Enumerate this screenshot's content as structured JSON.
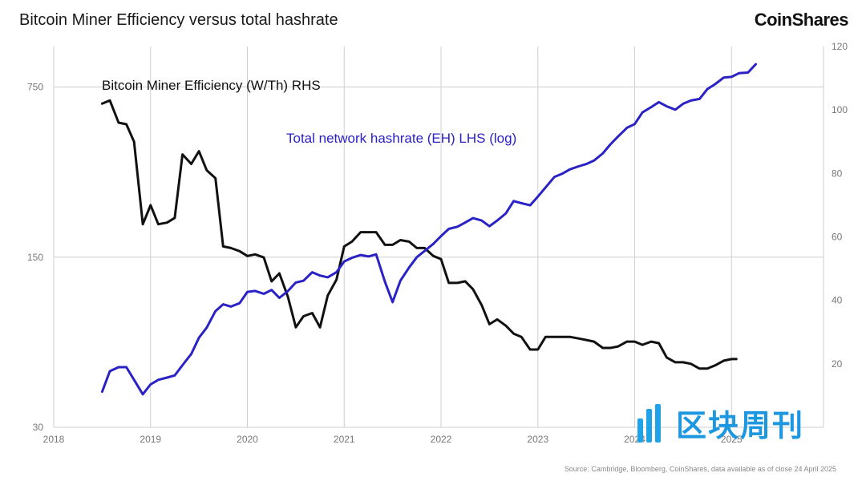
{
  "title": "Bitcoin Miner Efficiency versus total hashrate",
  "brand": "CoinShares",
  "source": "Source: Cambridge, Bloomberg, CoinShares, data available as of close 24 April 2025",
  "watermark": "区块周刊",
  "colors": {
    "efficiency": "#111111",
    "hashrate": "#2a22c4",
    "grid": "#cfcfcf",
    "watermark": "#1d97e0"
  },
  "chart_data": {
    "type": "line",
    "x_ticks": [
      "2018",
      "2019",
      "2020",
      "2021",
      "2022",
      "2023",
      "2024",
      "2025"
    ],
    "xlim": [
      2018.0,
      2025.95
    ],
    "left_axis": {
      "scale": "log",
      "ticks": [
        "30",
        "150",
        "750"
      ],
      "ylim": [
        30,
        1100
      ]
    },
    "right_axis": {
      "scale": "linear",
      "ticks": [
        "20",
        "40",
        "60",
        "80",
        "100",
        "120"
      ],
      "ylim": [
        0,
        120
      ]
    },
    "grid": {
      "vertical": true,
      "horizontal_at_left_ticks": true
    },
    "series": [
      {
        "name": "Bitcoin Miner Efficiency (W/Th) RHS",
        "axis": "right",
        "color": "#111111",
        "x": [
          2018.5,
          2018.58,
          2018.67,
          2018.75,
          2018.83,
          2018.92,
          2019.0,
          2019.08,
          2019.17,
          2019.25,
          2019.33,
          2019.42,
          2019.5,
          2019.58,
          2019.67,
          2019.75,
          2019.83,
          2019.92,
          2020.0,
          2020.08,
          2020.17,
          2020.25,
          2020.33,
          2020.42,
          2020.5,
          2020.58,
          2020.67,
          2020.75,
          2020.83,
          2020.92,
          2021.0,
          2021.08,
          2021.17,
          2021.25,
          2021.33,
          2021.42,
          2021.5,
          2021.58,
          2021.67,
          2021.75,
          2021.83,
          2021.92,
          2022.0,
          2022.08,
          2022.17,
          2022.25,
          2022.33,
          2022.42,
          2022.5,
          2022.58,
          2022.67,
          2022.75,
          2022.83,
          2022.92,
          2023.0,
          2023.08,
          2023.17,
          2023.25,
          2023.33,
          2023.42,
          2023.5,
          2023.58,
          2023.67,
          2023.75,
          2023.83,
          2023.92,
          2024.0,
          2024.08,
          2024.17,
          2024.25,
          2024.33,
          2024.42,
          2024.5,
          2024.58,
          2024.67,
          2024.75,
          2024.83,
          2024.92,
          2025.0,
          2025.05
        ],
        "y": [
          102,
          103,
          96,
          95.5,
          90,
          64,
          70,
          64,
          64.5,
          66,
          86,
          83,
          87,
          81,
          78.5,
          57,
          56.5,
          55.5,
          54,
          54.5,
          53.5,
          46,
          48.5,
          41,
          31.5,
          35,
          36,
          31.5,
          41.5,
          46.5,
          57,
          58.5,
          61.5,
          61.5,
          61.5,
          57.5,
          57.5,
          59,
          58.5,
          56.5,
          56.5,
          54,
          53,
          45.5,
          45.5,
          46,
          43.5,
          38.5,
          32.5,
          34,
          32,
          29.5,
          28.5,
          24.5,
          24.5,
          28.5,
          28.5,
          28.5,
          28.5,
          28,
          27.5,
          27,
          25,
          25,
          25.5,
          27,
          27,
          26,
          27,
          26.5,
          22,
          20.5,
          20.5,
          20,
          18.5,
          18.5,
          19.5,
          21,
          21.5,
          21.5
        ]
      },
      {
        "name": "Total network hashrate (EH) LHS (log)",
        "axis": "left",
        "color": "#2a22c4",
        "x": [
          2018.5,
          2018.58,
          2018.67,
          2018.75,
          2018.83,
          2018.92,
          2019.0,
          2019.08,
          2019.17,
          2019.25,
          2019.33,
          2019.42,
          2019.5,
          2019.58,
          2019.67,
          2019.75,
          2019.83,
          2019.92,
          2020.0,
          2020.08,
          2020.17,
          2020.25,
          2020.33,
          2020.42,
          2020.5,
          2020.58,
          2020.67,
          2020.75,
          2020.83,
          2020.92,
          2021.0,
          2021.08,
          2021.17,
          2021.25,
          2021.33,
          2021.42,
          2021.5,
          2021.58,
          2021.67,
          2021.75,
          2021.83,
          2021.92,
          2022.0,
          2022.08,
          2022.17,
          2022.25,
          2022.33,
          2022.42,
          2022.5,
          2022.58,
          2022.67,
          2022.75,
          2022.83,
          2022.92,
          2023.0,
          2023.08,
          2023.17,
          2023.25,
          2023.33,
          2023.42,
          2023.5,
          2023.58,
          2023.67,
          2023.75,
          2023.83,
          2023.92,
          2024.0,
          2024.08,
          2024.17,
          2024.25,
          2024.33,
          2024.42,
          2024.5,
          2024.58,
          2024.67,
          2024.75,
          2024.83,
          2024.92,
          2025.0,
          2025.08,
          2025.17,
          2025.25
        ],
        "y": [
          42,
          51,
          53,
          53,
          47,
          41,
          45,
          47,
          48,
          49,
          54,
          60,
          70,
          77,
          90,
          96,
          94,
          97,
          108,
          109,
          106,
          110,
          102,
          109,
          118,
          120,
          130,
          126,
          124,
          130,
          144,
          149,
          153,
          151,
          154,
          119,
          98,
          120,
          136,
          150,
          159,
          170,
          183,
          196,
          200,
          208,
          217,
          212,
          201,
          212,
          227,
          255,
          250,
          245,
          266,
          290,
          320,
          330,
          344,
          354,
          362,
          374,
          400,
          436,
          470,
          510,
          528,
          590,
          620,
          650,
          625,
          605,
          640,
          660,
          670,
          735,
          770,
          820,
          825,
          855,
          860,
          930
        ]
      }
    ],
    "annotations": [
      {
        "text": "Bitcoin Miner Efficiency (W/Th) RHS",
        "series": 0
      },
      {
        "text": "Total network hashrate (EH) LHS (log)",
        "series": 1
      }
    ]
  }
}
